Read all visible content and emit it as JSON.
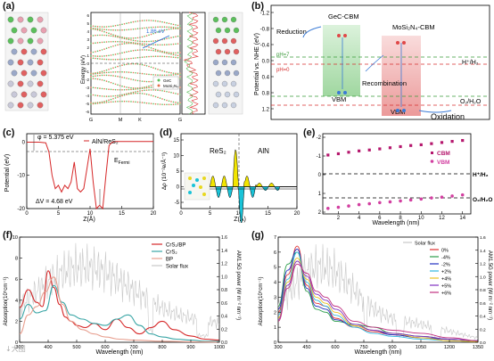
{
  "panels": {
    "a": {
      "label": "(a)",
      "ylabel": "Energy (eV)",
      "yticks": [
        "6",
        "5",
        "4",
        "3",
        "2",
        "1",
        "0",
        "-1",
        "-2",
        "-3",
        "-4",
        "-5",
        "-6"
      ],
      "xticks": [
        "G",
        "M",
        "K",
        "G"
      ],
      "gap_annotation": "1.86 eV",
      "legend": [
        "GeC",
        "MoSi₂N₄"
      ],
      "dos_legend": [
        "GeC",
        "MoSi₂N₄"
      ]
    },
    "b": {
      "label": "(b)",
      "ylabel": "Potential vs. NHE (eV)",
      "yticks": [
        "-1.2",
        "-0.8",
        "-0.4",
        "0.0",
        "0.4",
        "0.8",
        "1.2"
      ],
      "labels": {
        "gec_cbm": "GeC-CBM",
        "mosi_cbm": "MoSi₂N₄-CBM",
        "reduction": "Reduction",
        "recombination": "Recombination",
        "vbm1": "VBM",
        "vbm2": "VBM",
        "oxidation": "Oxidation",
        "ph7": "pH=7",
        "ph0": "pH=0",
        "h_label": "H⁺/H₂",
        "o_label": "O₂/H₂O"
      }
    },
    "c": {
      "label": "(c)",
      "legend": "AlN/ReS₂",
      "phi": "φ = 5.375 eV",
      "efermi": "E",
      "efermi_sub": "Fermi",
      "dv": "ΔV = 4.68 eV",
      "ylabel": "Potential (eV)",
      "xlabel": "Z(Å)",
      "xticks": [
        "0",
        "5",
        "10",
        "15",
        "20"
      ],
      "yticks": [
        "0",
        "-10",
        "-20"
      ]
    },
    "d": {
      "label": "(d)",
      "left_label": "ReS₂",
      "right_label": "AlN",
      "ylabel": "Δρ (10⁻²e/Å⁻¹)",
      "xlabel": "Z(Å)",
      "xticks": [
        "0",
        "5",
        "10",
        "15",
        "20"
      ],
      "yticks": [
        "15",
        "10",
        "5",
        "0",
        "-5"
      ]
    },
    "e": {
      "label": "(e)",
      "xlabel": "Wavelength (nm)",
      "legend": [
        "CBM",
        "VBM"
      ],
      "h_label": "H⁺/H₂",
      "o_label": "O₂/H₂O",
      "xticks": [
        "2",
        "4",
        "6",
        "8",
        "10",
        "12",
        "14"
      ],
      "yticks": [
        "-2",
        "-1",
        "0",
        "1",
        "2"
      ]
    },
    "f": {
      "label": "(f)",
      "ylabel": "Absorption(10⁵cm⁻¹)",
      "y2label": "AM1.5G power (W m⁻² nm⁻¹)",
      "xlabel": "Wavelength (nm)",
      "xticks": [
        "300",
        "400",
        "500",
        "600",
        "700",
        "800",
        "900",
        "1000"
      ],
      "yticks": [
        "0",
        "2",
        "4",
        "6",
        "8",
        "10"
      ],
      "y2ticks": [
        "0.0",
        "0.2",
        "0.4",
        "0.6",
        "0.8",
        "1.0",
        "1.2",
        "1.4",
        "1.6"
      ]
    },
    "g": {
      "label": "(g)",
      "ylabel": "Absorption(10⁵cm⁻¹)",
      "y2label": "AM1.5G power (W m⁻² nm⁻¹)",
      "xlabel": "Wavelength (nm)",
      "xticks": [
        "300",
        "450",
        "600",
        "750",
        "900",
        "1050",
        "1200",
        "1350"
      ],
      "yticks": [
        "0",
        "1",
        "2",
        "3",
        "4",
        "5",
        "6",
        "7"
      ],
      "y2ticks": [
        "0.0",
        "0.2",
        "0.4",
        "0.6",
        "0.8",
        "1.0",
        "1.2",
        "1.4",
        "1.6"
      ]
    }
  },
  "colors": {
    "red": "#d62728",
    "teal": "#3aa6a6",
    "salmon": "#e8a090",
    "solar": "#c8c8c8",
    "magenta": "#b5176d",
    "yellow": "#f2e500",
    "cyan": "#19c3d8"
  },
  "chart_data": [
    {
      "type": "line",
      "panel": "c",
      "series": [
        {
          "name": "AlN/ReS₂",
          "x": [
            0,
            1,
            2,
            3,
            3.5,
            4,
            4.5,
            5,
            5.5,
            6,
            6.5,
            7,
            7.5,
            8,
            8.5,
            9,
            9.5,
            10,
            10.5,
            11,
            11.5,
            12,
            12.5,
            13,
            13.5,
            14,
            15,
            16,
            17,
            18,
            19,
            20
          ],
          "y": [
            0,
            0,
            0,
            -0.2,
            -3,
            -10,
            -14,
            -13,
            -15,
            -13,
            -14,
            -12,
            -6,
            -14,
            -15,
            -14,
            -8,
            -2,
            -12,
            -20,
            -19,
            -20,
            -10,
            -1,
            0,
            0.2,
            0.2,
            0.2,
            0.2,
            0.2,
            0.2,
            0.2
          ]
        }
      ],
      "xlim": [
        0,
        20
      ],
      "ylim": [
        -20,
        2
      ]
    },
    {
      "type": "scatter",
      "panel": "e",
      "series": [
        {
          "name": "CBM",
          "x": [
            1,
            2,
            3,
            4,
            5,
            6,
            7,
            8,
            9,
            10,
            11,
            12,
            13,
            14
          ],
          "y": [
            -1.05,
            -1.12,
            -1.2,
            -1.27,
            -1.32,
            -1.38,
            -1.44,
            -1.5,
            -1.56,
            -1.6,
            -1.66,
            -1.72,
            -1.78,
            -1.83
          ]
        },
        {
          "name": "VBM",
          "x": [
            1,
            2,
            3,
            4,
            5,
            6,
            7,
            8,
            9,
            10,
            11,
            12,
            13,
            14
          ],
          "y": [
            1.8,
            1.74,
            1.67,
            1.6,
            1.55,
            1.49,
            1.45,
            1.4,
            1.35,
            1.3,
            1.24,
            1.2,
            1.14,
            1.08
          ]
        }
      ],
      "xlim": [
        0.5,
        14.8
      ],
      "ylim": [
        2,
        -2
      ]
    },
    {
      "type": "line",
      "panel": "f",
      "series": [
        {
          "name": "CrS₂/BP",
          "x": [
            300,
            330,
            360,
            380,
            400,
            420,
            440,
            460,
            480,
            500,
            530,
            560,
            600,
            640,
            680,
            720,
            760,
            800,
            840,
            900,
            950,
            1000
          ],
          "y": [
            3.3,
            5.0,
            3.8,
            3.4,
            6.8,
            5.2,
            3.6,
            2.4,
            2.0,
            1.6,
            1.4,
            1.8,
            1.2,
            2.2,
            1.4,
            0.8,
            1.4,
            2.0,
            1.2,
            0.6,
            0.3,
            0.2
          ]
        },
        {
          "name": "CrS₂",
          "x": [
            300,
            330,
            360,
            390,
            420,
            450,
            480,
            520,
            560,
            600,
            640,
            680,
            720,
            760,
            800,
            850,
            900,
            950,
            1000
          ],
          "y": [
            2.2,
            3.6,
            2.8,
            3.0,
            5.4,
            3.8,
            2.6,
            2.2,
            1.8,
            1.6,
            2.2,
            2.6,
            1.6,
            0.8,
            0.5,
            0.3,
            0.2,
            0.1,
            0.1
          ]
        },
        {
          "name": "BP",
          "x": [
            300,
            330,
            360,
            390,
            420,
            450,
            480,
            520,
            560,
            600,
            650,
            700,
            800,
            900,
            1000
          ],
          "y": [
            0.8,
            2.6,
            3.4,
            4.8,
            6.2,
            3.6,
            2.0,
            1.2,
            0.8,
            0.5,
            0.3,
            0.2,
            0.1,
            0.05,
            0.02
          ]
        }
      ],
      "xlim": [
        300,
        1000
      ],
      "ylim": [
        0,
        10
      ]
    },
    {
      "type": "line",
      "panel": "g",
      "series": [
        {
          "name": "0%",
          "x": [
            300,
            350,
            400,
            450,
            500,
            550,
            600,
            700,
            800,
            900,
            1050,
            1200,
            1350
          ],
          "y": [
            2.0,
            4.5,
            6.4,
            3.8,
            2.6,
            2.4,
            1.6,
            1.0,
            0.7,
            0.5,
            0.3,
            0.1,
            0.05
          ]
        },
        {
          "name": "-4%",
          "x": [
            300,
            350,
            400,
            450,
            500,
            550,
            600,
            700,
            800,
            900,
            1050,
            1200,
            1350
          ],
          "y": [
            2.4,
            5.2,
            6.0,
            3.4,
            2.2,
            2.0,
            1.4,
            1.2,
            1.0,
            0.6,
            0.4,
            0.2,
            0.1
          ]
        },
        {
          "name": "-2%",
          "x": [
            300,
            350,
            400,
            450,
            500,
            550,
            600,
            700,
            800,
            900,
            1050,
            1200,
            1350
          ],
          "y": [
            2.2,
            4.8,
            6.2,
            3.6,
            2.4,
            2.2,
            1.5,
            1.1,
            0.8,
            0.5,
            0.3,
            0.2,
            0.1
          ]
        },
        {
          "name": "+2%",
          "x": [
            300,
            350,
            400,
            450,
            500,
            550,
            600,
            700,
            800,
            900,
            1050,
            1200,
            1350
          ],
          "y": [
            1.8,
            4.2,
            6.0,
            4.0,
            2.8,
            2.4,
            1.8,
            1.0,
            0.6,
            0.4,
            0.2,
            0.1,
            0.05
          ]
        },
        {
          "name": "+4%",
          "x": [
            300,
            350,
            400,
            450,
            500,
            550,
            600,
            700,
            800,
            900,
            1050,
            1200,
            1350
          ],
          "y": [
            1.6,
            4.0,
            5.6,
            4.2,
            3.0,
            2.6,
            2.0,
            1.1,
            0.8,
            0.6,
            0.3,
            0.1,
            0.05
          ]
        },
        {
          "name": "+5%",
          "x": [
            300,
            350,
            400,
            450,
            500,
            550,
            600,
            700,
            800,
            900,
            1050,
            1200,
            1350
          ],
          "y": [
            1.5,
            3.8,
            5.4,
            4.4,
            3.2,
            2.8,
            2.2,
            1.2,
            0.8,
            0.6,
            0.4,
            0.2,
            0.1
          ]
        },
        {
          "name": "+6%",
          "x": [
            300,
            350,
            400,
            450,
            500,
            550,
            600,
            700,
            800,
            900,
            1050,
            1200,
            1350
          ],
          "y": [
            1.4,
            3.6,
            5.2,
            4.6,
            3.4,
            3.0,
            2.4,
            1.4,
            1.0,
            0.8,
            0.6,
            0.3,
            0.1
          ]
        }
      ],
      "legend": [
        "Solar flux",
        "0%",
        "-4%",
        "-2%",
        "+2%",
        "+4%",
        "+5%",
        "+6%"
      ],
      "legend_colors": [
        "#c8c8c8",
        "#e03030",
        "#2a9d4a",
        "#2030c0",
        "#30b8e0",
        "#e8c020",
        "#8030c0",
        "#c03080"
      ],
      "xlim": [
        300,
        1350
      ],
      "ylim": [
        0,
        7
      ]
    }
  ],
  "legends_f": [
    "CrS₂/BP",
    "CrS₂",
    "BP",
    "Solar flux"
  ],
  "watermark": "↓大图"
}
